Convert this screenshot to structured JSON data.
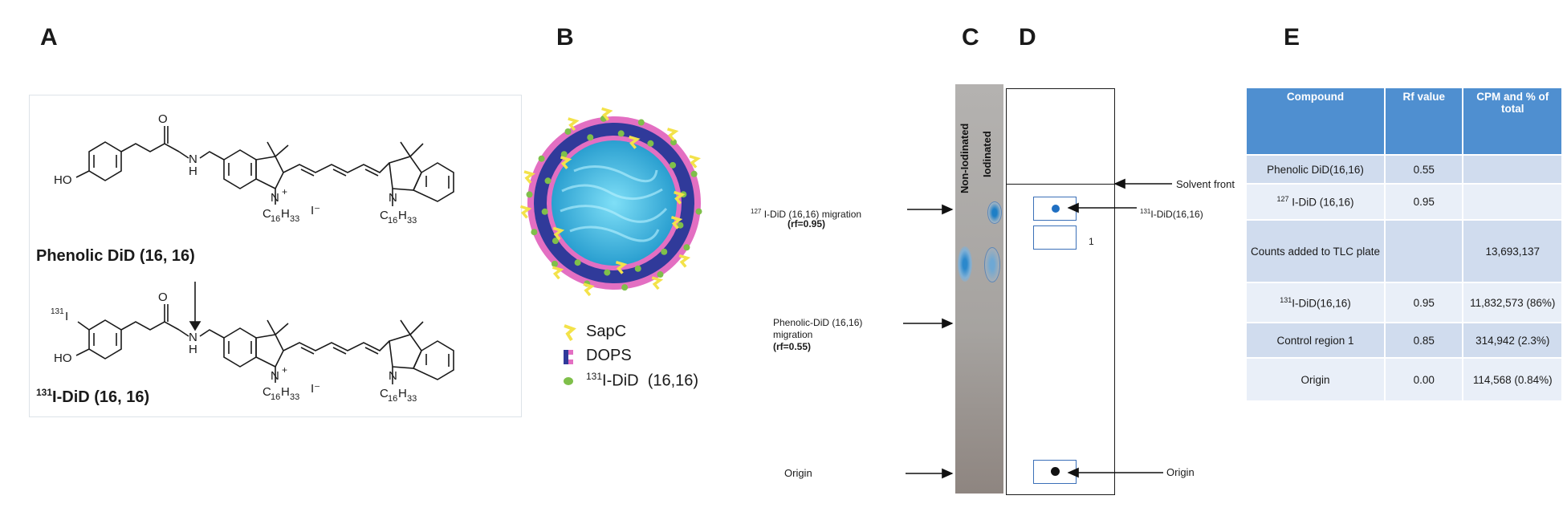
{
  "panels": {
    "a": "A",
    "b": "B",
    "c": "C",
    "d": "D",
    "e": "E"
  },
  "panel_a": {
    "top_name": "Phenolic DiD (16, 16)",
    "bottom_name_sup": "131",
    "bottom_name_rest": "I-DiD (16, 16)",
    "atoms": {
      "O": "O",
      "H": "H",
      "N": "N",
      "plus": "+",
      "HO": "HO",
      "iodide": "I⁻",
      "iodine_sup": "131",
      "iodine": "I",
      "chain_c": "C",
      "chain_c_sub": "16",
      "chain_h": "H",
      "chain_h_sub": "33"
    }
  },
  "panel_b": {
    "legend": [
      {
        "symbol": "sapc",
        "label": "SapC",
        "sup": ""
      },
      {
        "symbol": "dops",
        "label": "DOPS",
        "sup": ""
      },
      {
        "symbol": "did",
        "label": "I-DiD  (16,16)",
        "sup": "131"
      }
    ],
    "colors": {
      "core": "#3fb0d8",
      "head": "#e36fc2",
      "tail": "#303a9a",
      "sapc": "#f3e24a",
      "did": "#7fbf4a"
    }
  },
  "panel_c": {
    "lane1": "Non-Iodinated",
    "lane2": "Iodinated",
    "label_127_sup": "127",
    "label_127": " I-DiD (16,16) migration",
    "rf_127": "(rf=0.95)",
    "label_phen": "Phenolic-DiD (16,16)",
    "label_phen2": "migration",
    "rf_phen": "(rf=0.55)",
    "origin": "Origin"
  },
  "panel_d": {
    "solvent_front": "Solvent front",
    "label_131_sup": "131",
    "label_131": "I-DiD(16,16)",
    "region": "1",
    "origin": "Origin"
  },
  "table": {
    "headers": [
      "Compound",
      "Rf value",
      "CPM and % of total"
    ],
    "rows": [
      {
        "c": "Phenolic DiD(16,16)",
        "sup": "",
        "rf": "0.55",
        "cpm": ""
      },
      {
        "c": " I-DiD (16,16)",
        "sup": "127",
        "rf": "0.95",
        "cpm": ""
      },
      {
        "c": "Counts added to TLC plate",
        "sup": "",
        "rf": "",
        "cpm": "13,693,137"
      },
      {
        "c": "I-DiD(16,16)",
        "sup": "131",
        "rf": "0.95",
        "cpm": "11,832,573 (86%)"
      },
      {
        "c": "Control region 1",
        "sup": "",
        "rf": "0.85",
        "cpm": "314,942 (2.3%)"
      },
      {
        "c": "Origin",
        "sup": "",
        "rf": "0.00",
        "cpm": "114,568 (0.84%)"
      }
    ]
  }
}
